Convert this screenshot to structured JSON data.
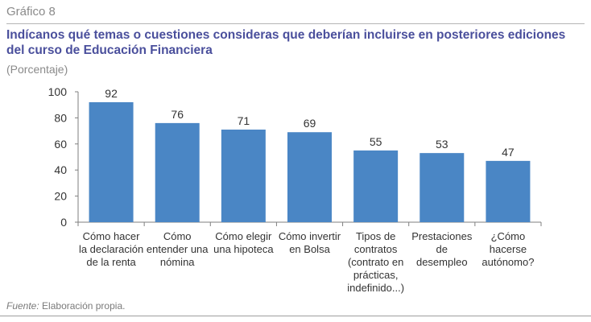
{
  "figure_label": "Gráfico 8",
  "title": "Indícanos qué temas o cuestiones consideras que deberían incluirse en posteriores ediciones del curso de Educación Financiera",
  "subtitle": "(Porcentaje)",
  "source_label": "Fuente:",
  "source_text": "Elaboración propia.",
  "colors": {
    "bar": "#4a86c5",
    "title": "#4a4f9c"
  },
  "chart_data": {
    "type": "bar",
    "categories": [
      [
        "Cómo hacer",
        "la declaración",
        "de la renta"
      ],
      [
        "Cómo",
        "entender una",
        "nómina"
      ],
      [
        "Cómo elegir",
        "una hipoteca"
      ],
      [
        "Cómo invertir",
        "en Bolsa"
      ],
      [
        "Tipos de",
        "contratos",
        "(contrato en",
        "prácticas,",
        "indefinido...)"
      ],
      [
        "Prestaciones",
        "de",
        "desempleo"
      ],
      [
        "¿Cómo",
        "hacerse",
        "autónomo?"
      ]
    ],
    "values": [
      92,
      76,
      71,
      69,
      55,
      53,
      47
    ],
    "ylim": [
      0,
      100
    ],
    "yticks": [
      0,
      20,
      40,
      60,
      80,
      100
    ],
    "grid": false
  }
}
